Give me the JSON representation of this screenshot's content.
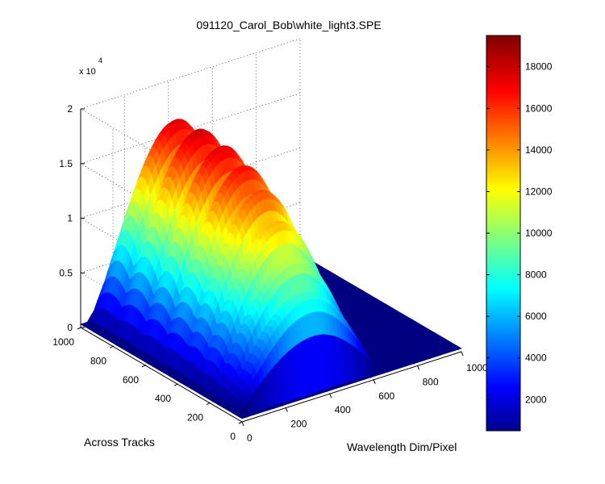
{
  "chart_data": {
    "type": "surface3d",
    "title": "091120_Carol_Bob\\white_light3.SPE",
    "xlabel": "Wavelength Dim/Pixel",
    "ylabel": "Across Tracks",
    "zlabel": "",
    "z_exponent_label": "x 10",
    "z_exponent_power": "4",
    "x_range": [
      0,
      1000
    ],
    "y_range": [
      0,
      1000
    ],
    "z_range": [
      0,
      20000
    ],
    "x_ticks": [
      "0",
      "200",
      "400",
      "600",
      "800",
      "1000"
    ],
    "y_ticks": [
      "0",
      "200",
      "400",
      "600",
      "800",
      "1000"
    ],
    "z_ticks": [
      "0",
      "0.5",
      "1",
      "1.5",
      "2"
    ],
    "z_tick_values": [
      0,
      5000,
      10000,
      15000,
      20000
    ],
    "grid": true,
    "colormap": "jet",
    "colorbar": {
      "position": "right",
      "range": [
        500,
        19500
      ],
      "ticks": [
        "2000",
        "4000",
        "6000",
        "8000",
        "10000",
        "12000",
        "14000",
        "16000",
        "18000"
      ],
      "tick_values": [
        2000,
        4000,
        6000,
        8000,
        10000,
        12000,
        14000,
        16000,
        18000
      ]
    },
    "series": [
      {
        "across_track_center": 880,
        "halfwidth": 110,
        "peak_value": 17500
      },
      {
        "across_track_center": 740,
        "halfwidth": 120,
        "peak_value": 17800
      },
      {
        "across_track_center": 600,
        "halfwidth": 110,
        "peak_value": 17500
      },
      {
        "across_track_center": 470,
        "halfwidth": 110,
        "peak_value": 16800
      },
      {
        "across_track_center": 360,
        "halfwidth": 100,
        "peak_value": 15500
      },
      {
        "across_track_center": 260,
        "halfwidth": 90,
        "peak_value": 13500
      },
      {
        "across_track_center": 170,
        "halfwidth": 80,
        "peak_value": 11000
      },
      {
        "across_track_center": 90,
        "halfwidth": 70,
        "peak_value": 8500
      }
    ],
    "spectral_profile": {
      "wavelength_start": 10,
      "wavelength_end": 650,
      "wavelength_peak": 350
    }
  }
}
